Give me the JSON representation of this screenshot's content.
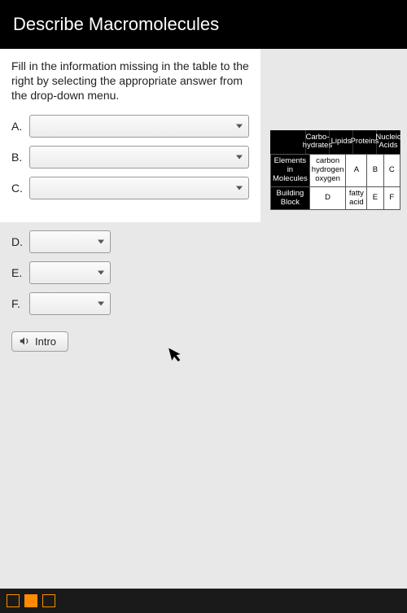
{
  "title": "Describe Macromolecules",
  "instructions": "Fill in the information missing in the table to the right by selecting the appropriate answer from the drop-down menu.",
  "dropdowns": [
    {
      "label": "A.",
      "size": "long",
      "value": ""
    },
    {
      "label": "B.",
      "size": "long",
      "value": ""
    },
    {
      "label": "C.",
      "size": "long",
      "value": ""
    },
    {
      "label": "D.",
      "size": "short",
      "value": ""
    },
    {
      "label": "E.",
      "size": "short",
      "value": ""
    },
    {
      "label": "F.",
      "size": "short",
      "value": ""
    }
  ],
  "intro_label": "Intro",
  "table": {
    "col_headers": [
      "",
      "Carbo-\nhydrates",
      "Lipids",
      "Proteins",
      "Nucleic\nAcids"
    ],
    "rows": [
      {
        "header": "Elements in\nMolecules",
        "cells": [
          "carbon\nhydrogen\noxygen",
          "A",
          "B",
          "C"
        ]
      },
      {
        "header": "Building\nBlock",
        "cells": [
          "D",
          "fatty\nacid",
          "E",
          "F"
        ]
      }
    ],
    "colors": {
      "header_bg": "#000000",
      "header_fg": "#ffffff",
      "cell_bg": "#ffffff",
      "border": "#555555"
    }
  }
}
